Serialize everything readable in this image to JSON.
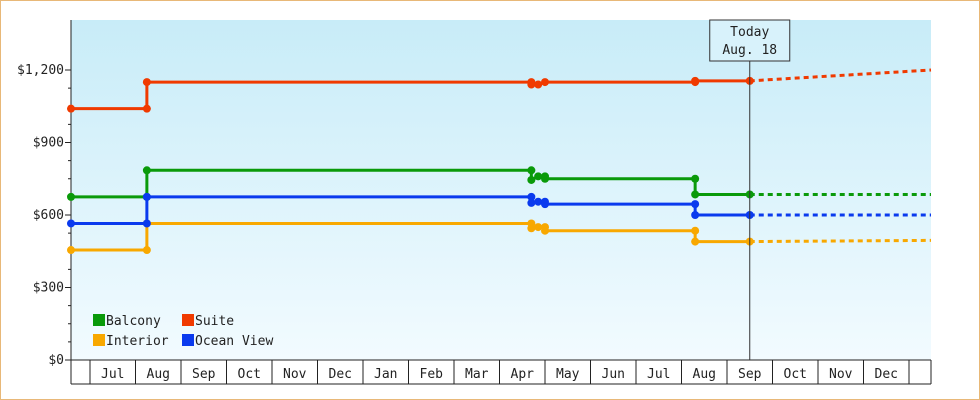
{
  "chart_data": {
    "type": "line",
    "step": true,
    "y_ticks": [
      "$0",
      "$300",
      "$600",
      "$900",
      "$1,200"
    ],
    "y_tick_values": [
      0,
      300,
      600,
      900,
      1200
    ],
    "ylim": [
      0,
      1200
    ],
    "x_tick_labels": [
      "Jul",
      "Aug",
      "Sep",
      "Oct",
      "Nov",
      "Dec",
      "Jan",
      "Feb",
      "Mar",
      "Apr",
      "May",
      "Jun",
      "Jul",
      "Aug",
      "Sep",
      "Oct",
      "Nov",
      "Dec"
    ],
    "grid": false,
    "legend_position": "bottom-left",
    "today": {
      "line1": "Today",
      "line2": "Aug. 18",
      "x": 14.0
    },
    "series": [
      {
        "name": "Balcony",
        "color": "#0a9a0a",
        "points": [
          [
            -0.45,
            675
          ],
          [
            0.75,
            675
          ],
          [
            0.75,
            785
          ],
          [
            9.2,
            785
          ],
          [
            9.2,
            745
          ],
          [
            9.35,
            760
          ],
          [
            9.5,
            760
          ],
          [
            9.5,
            750
          ],
          [
            12.8,
            750
          ],
          [
            12.8,
            685
          ],
          [
            14.0,
            685
          ]
        ],
        "forecast": [
          [
            14.0,
            685
          ],
          [
            19.0,
            685
          ]
        ]
      },
      {
        "name": "Suite",
        "color": "#f03a00",
        "points": [
          [
            -0.45,
            1040
          ],
          [
            0.75,
            1040
          ],
          [
            0.75,
            1150
          ],
          [
            9.2,
            1150
          ],
          [
            9.2,
            1140
          ],
          [
            9.35,
            1140
          ],
          [
            9.5,
            1150
          ],
          [
            12.8,
            1150
          ],
          [
            12.8,
            1155
          ],
          [
            14.0,
            1155
          ]
        ],
        "forecast": [
          [
            14.0,
            1155
          ],
          [
            19.0,
            1200
          ]
        ]
      },
      {
        "name": "Interior",
        "color": "#f8a800",
        "points": [
          [
            -0.45,
            455
          ],
          [
            0.75,
            455
          ],
          [
            0.75,
            565
          ],
          [
            9.2,
            565
          ],
          [
            9.2,
            545
          ],
          [
            9.35,
            550
          ],
          [
            9.5,
            550
          ],
          [
            9.5,
            535
          ],
          [
            12.8,
            535
          ],
          [
            12.8,
            490
          ],
          [
            14.0,
            490
          ]
        ],
        "forecast": [
          [
            14.0,
            490
          ],
          [
            19.0,
            495
          ]
        ]
      },
      {
        "name": "Ocean View",
        "color": "#0a3aee",
        "points": [
          [
            -0.45,
            565
          ],
          [
            0.75,
            565
          ],
          [
            0.75,
            675
          ],
          [
            9.2,
            675
          ],
          [
            9.2,
            650
          ],
          [
            9.35,
            655
          ],
          [
            9.5,
            655
          ],
          [
            9.5,
            645
          ],
          [
            12.8,
            645
          ],
          [
            12.8,
            600
          ],
          [
            14.0,
            600
          ]
        ],
        "forecast": [
          [
            14.0,
            600
          ],
          [
            19.0,
            600
          ]
        ]
      }
    ]
  }
}
